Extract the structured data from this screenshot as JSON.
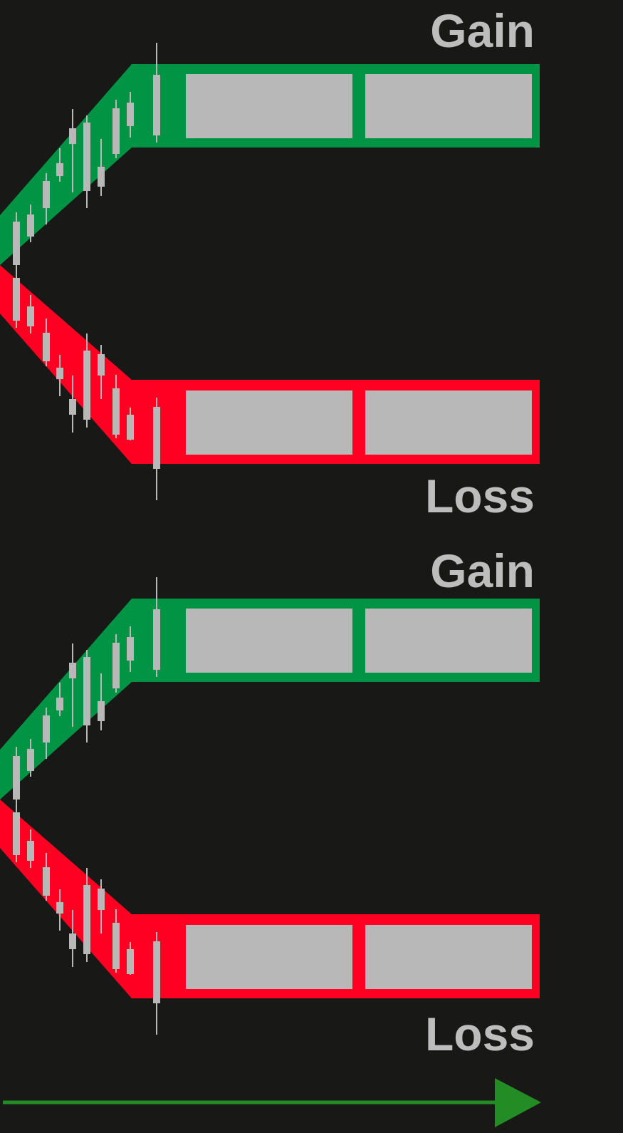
{
  "panels": [
    {
      "gain_label": "Gain",
      "loss_label": "Loss"
    },
    {
      "gain_label": "Gain",
      "loss_label": "Loss"
    }
  ],
  "colors": {
    "background": "#181917",
    "gain": "#009444",
    "loss": "#ff0022",
    "candle": "#b8b8b8",
    "label": "#bdbdbd",
    "arrow": "#248c24"
  },
  "icons": {
    "arrow": "right-arrow-icon"
  }
}
